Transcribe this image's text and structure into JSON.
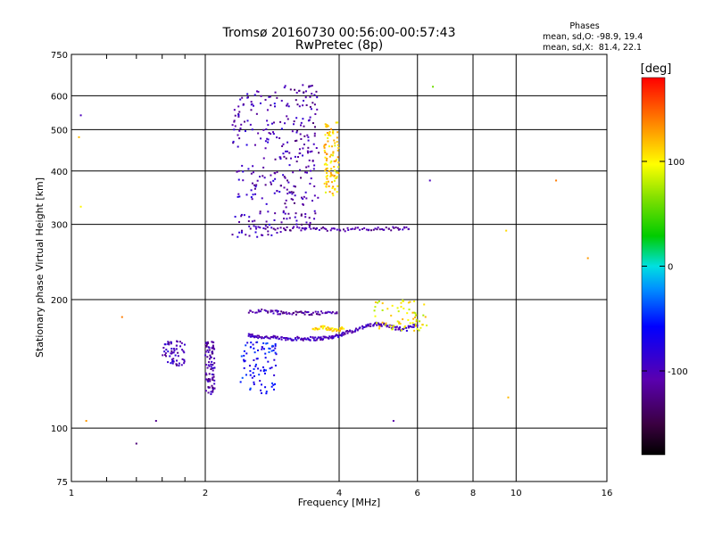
{
  "header": {
    "title_line1": "Tromsø 20160730 00:56:00-00:57:43",
    "title_line2": "RwPretec (8p)"
  },
  "phases_box": {
    "heading": "Phases",
    "line_o": "mean, sd,O: -98.9, 19.4",
    "line_x": "mean, sd,X:  81.4, 22.1"
  },
  "colorbar": {
    "unit": "[deg]",
    "ticks": [
      "100",
      "0",
      "-100"
    ],
    "range": [
      -180,
      180
    ]
  },
  "chart_data": {
    "type": "scatter",
    "title": "Tromsø 20160730 00:56:00-00:57:43",
    "subtitle": "RwPretec (8p)",
    "xlabel": "Frequency [MHz]",
    "ylabel": "Stationary phase Virtual Height [km]",
    "x_scale": "log",
    "y_scale": "log",
    "xlim": [
      1,
      16
    ],
    "ylim": [
      75,
      750
    ],
    "x_ticks": [
      "1",
      "2",
      "4",
      "6",
      "8",
      "10",
      "16"
    ],
    "y_ticks": [
      "750",
      "600",
      "500",
      "400",
      "300",
      "200",
      "100",
      "75"
    ],
    "grid": true,
    "color_encoding": "phase [deg]",
    "traces": [
      {
        "x": [
          2.5,
          2.6,
          2.8,
          3.0,
          3.2,
          3.4,
          3.6,
          3.8,
          4.0,
          4.2,
          4.5,
          4.8,
          5.0,
          5.3,
          5.6,
          6.0
        ],
        "y": [
          165,
          164,
          163,
          162,
          162,
          162,
          162,
          163,
          165,
          168,
          172,
          175,
          175,
          172,
          170,
          175
        ],
        "phase": -100
      },
      {
        "x": [
          2.5,
          2.8,
          3.0,
          3.3,
          3.6,
          4.0
        ],
        "y": [
          188,
          188,
          186,
          186,
          186,
          187
        ],
        "phase": -110
      },
      {
        "x": [
          2.5,
          3.0,
          3.5,
          4.0,
          4.6,
          5.2,
          5.8
        ],
        "y": [
          295,
          293,
          293,
          292,
          292,
          293,
          293
        ],
        "phase": -110
      },
      {
        "x": [
          3.5,
          3.7,
          3.9,
          4.1
        ],
        "y": [
          170,
          172,
          170,
          171
        ],
        "phase": 110
      }
    ],
    "clusters": [
      {
        "x_range": [
          2.3,
          3.0
        ],
        "y_range": [
          280,
          620
        ],
        "phase": -100
      },
      {
        "x_range": [
          3.0,
          3.6
        ],
        "y_range": [
          290,
          640
        ],
        "phase": -110
      },
      {
        "x_range": [
          2.0,
          2.1
        ],
        "y_range": [
          120,
          160
        ],
        "phase": -110
      },
      {
        "x_range": [
          2.4,
          2.9
        ],
        "y_range": [
          120,
          160
        ],
        "phase": -60
      },
      {
        "x_range": [
          1.6,
          1.8
        ],
        "y_range": [
          140,
          160
        ],
        "phase": -100
      },
      {
        "x_range": [
          4.8,
          6.3
        ],
        "y_range": [
          168,
          200
        ],
        "phase": 100
      },
      {
        "x_range": [
          3.7,
          4.0
        ],
        "y_range": [
          350,
          520
        ],
        "phase": 110
      }
    ],
    "isolated_points": [
      {
        "x": 1.05,
        "y": 540,
        "phase": -100
      },
      {
        "x": 1.04,
        "y": 480,
        "phase": 120
      },
      {
        "x": 1.05,
        "y": 330,
        "phase": 100
      },
      {
        "x": 1.08,
        "y": 104,
        "phase": 130
      },
      {
        "x": 1.3,
        "y": 182,
        "phase": 140
      },
      {
        "x": 1.4,
        "y": 92,
        "phase": -130
      },
      {
        "x": 1.55,
        "y": 104,
        "phase": -120
      },
      {
        "x": 6.4,
        "y": 380,
        "phase": -100
      },
      {
        "x": 6.5,
        "y": 630,
        "phase": 60
      },
      {
        "x": 9.5,
        "y": 290,
        "phase": 110
      },
      {
        "x": 9.6,
        "y": 118,
        "phase": 120
      },
      {
        "x": 12.3,
        "y": 380,
        "phase": 140
      },
      {
        "x": 14.5,
        "y": 250,
        "phase": 130
      },
      {
        "x": 5.3,
        "y": 104,
        "phase": -110
      }
    ]
  }
}
